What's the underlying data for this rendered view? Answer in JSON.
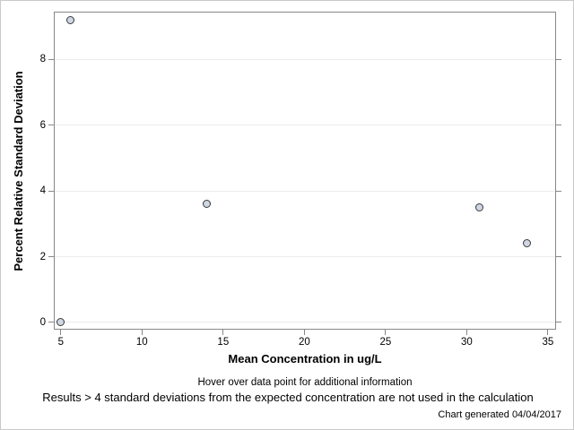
{
  "chart_data": {
    "type": "scatter",
    "title": "",
    "xlabel": "Mean Concentration in ug/L",
    "ylabel": "Percent Relative Standard Deviation",
    "x_ticks": [
      5,
      10,
      15,
      20,
      25,
      30,
      35
    ],
    "y_ticks": [
      0,
      2,
      4,
      6,
      8
    ],
    "xlim": [
      4.57,
      35.5
    ],
    "ylim": [
      -0.22,
      9.45
    ],
    "grid": "horizontal-only",
    "legend": "none",
    "points": [
      {
        "x": 5.0,
        "y": 0.0
      },
      {
        "x": 5.6,
        "y": 9.2
      },
      {
        "x": 14.0,
        "y": 3.6
      },
      {
        "x": 30.8,
        "y": 3.5
      },
      {
        "x": 33.7,
        "y": 2.4
      }
    ],
    "marker": {
      "shape": "circle",
      "fill": "#cfd7e4",
      "stroke": "#383838"
    }
  },
  "footer": {
    "line1": "Hover over data point for additional information",
    "line2": "Results > 4 standard deviations from the expected concentration are not used in the calculation",
    "generated": "Chart generated 04/04/2017"
  },
  "colors": {
    "background": "#ffffff",
    "canvas_border": "#c9c9c9",
    "frame": "#888888",
    "grid": "#ececec",
    "tick": "#888888",
    "text": "#000000",
    "marker_fill": "#cfd7e4",
    "marker_stroke": "#383838"
  }
}
